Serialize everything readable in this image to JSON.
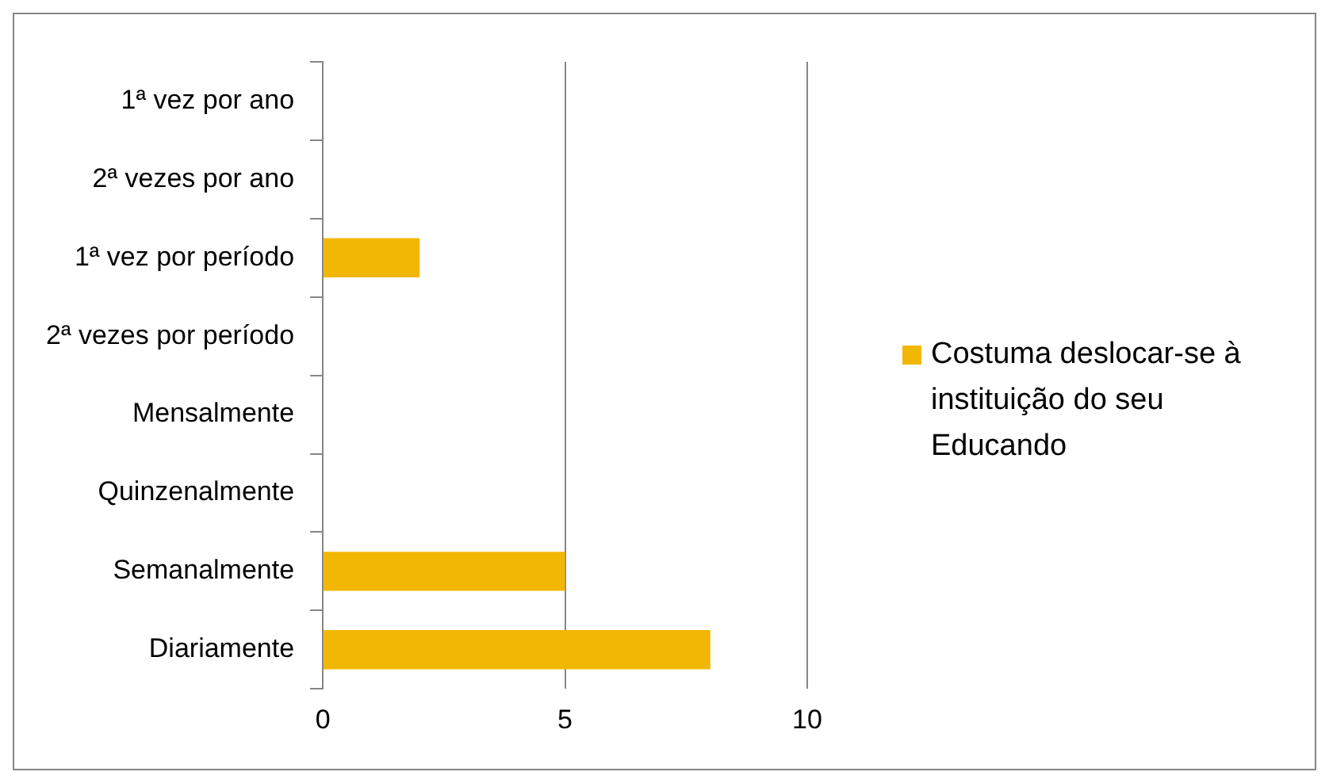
{
  "chart_data": {
    "type": "bar",
    "orientation": "horizontal",
    "categories": [
      "1ª vez por ano",
      "2ª vezes por ano",
      "1ª vez por período",
      "2ª vezes por período",
      "Mensalmente",
      "Quinzenalmente",
      "Semanalmente",
      "Diariamente"
    ],
    "series": [
      {
        "name": "Costuma deslocar-se à instituição do seu Educando",
        "color": "#f2b705",
        "values": [
          0,
          0,
          2,
          0,
          0,
          0,
          5,
          8
        ]
      }
    ],
    "xlim": [
      0,
      10
    ],
    "xticks": [
      0,
      5,
      10
    ],
    "grid": "x",
    "legend": "right"
  }
}
